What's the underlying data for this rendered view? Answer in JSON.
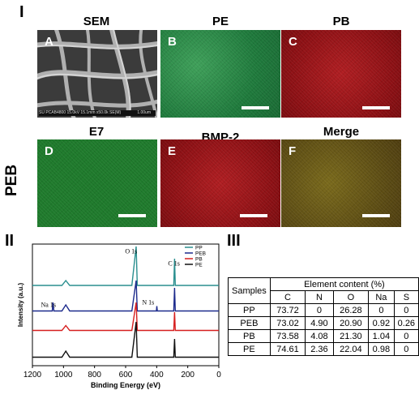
{
  "sections": {
    "one": "I",
    "two": "II",
    "three": "III"
  },
  "row_label": "PEB",
  "panels": [
    {
      "id": "A",
      "title": "SEM",
      "color": "#3a3a3a",
      "sem_caption": [
        "SU PCAB4800 15.0kV 15.1mm x50.0k SE(M)",
        "1.00um"
      ]
    },
    {
      "id": "B",
      "title": "PE",
      "color": "#1f7a3c"
    },
    {
      "id": "C",
      "title": "PB",
      "color": "#8c1014"
    },
    {
      "id": "D",
      "title": "E7",
      "color": "#1f7a2c"
    },
    {
      "id": "E",
      "title": "BMP-2",
      "color": "#8c1014"
    },
    {
      "id": "F",
      "title": "Merge",
      "color": "#5e4e14"
    }
  ],
  "chart_data": {
    "type": "line",
    "ylabel": "Intensity (a.u.)",
    "xlabel": "Binding Energy (eV)",
    "xlim": [
      1200,
      0
    ],
    "xticks": [
      "1200",
      "1000",
      "800",
      "600",
      "400",
      "200",
      "0"
    ],
    "legend_position": "top-right",
    "series": [
      {
        "name": "PP",
        "color": "#2a8f8f",
        "points": [
          [
            1200,
            0.66
          ],
          [
            1010,
            0.66
          ],
          [
            985,
            0.7
          ],
          [
            960,
            0.66
          ],
          [
            560,
            0.66
          ],
          [
            532,
            0.98
          ],
          [
            525,
            0.66
          ],
          [
            290,
            0.66
          ],
          [
            285,
            0.88
          ],
          [
            280,
            0.66
          ],
          [
            0,
            0.66
          ]
        ]
      },
      {
        "name": "PEB",
        "color": "#1c2a8c",
        "points": [
          [
            1200,
            0.45
          ],
          [
            1072,
            0.45
          ],
          [
            1068,
            0.52
          ],
          [
            1062,
            0.45
          ],
          [
            1010,
            0.45
          ],
          [
            985,
            0.5
          ],
          [
            960,
            0.45
          ],
          [
            560,
            0.45
          ],
          [
            532,
            0.7
          ],
          [
            525,
            0.45
          ],
          [
            402,
            0.45
          ],
          [
            399,
            0.49
          ],
          [
            396,
            0.45
          ],
          [
            290,
            0.45
          ],
          [
            285,
            0.64
          ],
          [
            280,
            0.45
          ],
          [
            0,
            0.45
          ]
        ]
      },
      {
        "name": "PB",
        "color": "#d61f1f",
        "points": [
          [
            1200,
            0.29
          ],
          [
            1010,
            0.29
          ],
          [
            985,
            0.33
          ],
          [
            960,
            0.29
          ],
          [
            560,
            0.29
          ],
          [
            532,
            0.52
          ],
          [
            525,
            0.29
          ],
          [
            290,
            0.29
          ],
          [
            285,
            0.44
          ],
          [
            280,
            0.29
          ],
          [
            0,
            0.29
          ]
        ]
      },
      {
        "name": "PE",
        "color": "#111111",
        "points": [
          [
            1200,
            0.07
          ],
          [
            1010,
            0.07
          ],
          [
            985,
            0.12
          ],
          [
            960,
            0.07
          ],
          [
            560,
            0.07
          ],
          [
            532,
            0.36
          ],
          [
            525,
            0.07
          ],
          [
            290,
            0.07
          ],
          [
            285,
            0.22
          ],
          [
            280,
            0.07
          ],
          [
            0,
            0.07
          ]
        ]
      }
    ],
    "annotations": [
      {
        "text": "O 1s",
        "x": 530
      },
      {
        "text": "C 1s",
        "x": 285
      },
      {
        "text": "N 1s",
        "x": 400
      },
      {
        "text": "Na 1s",
        "x": 1072
      }
    ]
  },
  "table": {
    "header_samples": "Samples",
    "header_group": "Element content (%)",
    "columns": [
      "C",
      "N",
      "O",
      "Na",
      "S"
    ],
    "rows": [
      {
        "sample": "PP",
        "values": [
          "73.72",
          "0",
          "26.28",
          "0",
          "0"
        ]
      },
      {
        "sample": "PEB",
        "values": [
          "73.02",
          "4.90",
          "20.90",
          "0.92",
          "0.26"
        ]
      },
      {
        "sample": "PB",
        "values": [
          "73.58",
          "4.08",
          "21.30",
          "1.04",
          "0"
        ]
      },
      {
        "sample": "PE",
        "values": [
          "74.61",
          "2.36",
          "22.04",
          "0.98",
          "0"
        ]
      }
    ]
  }
}
